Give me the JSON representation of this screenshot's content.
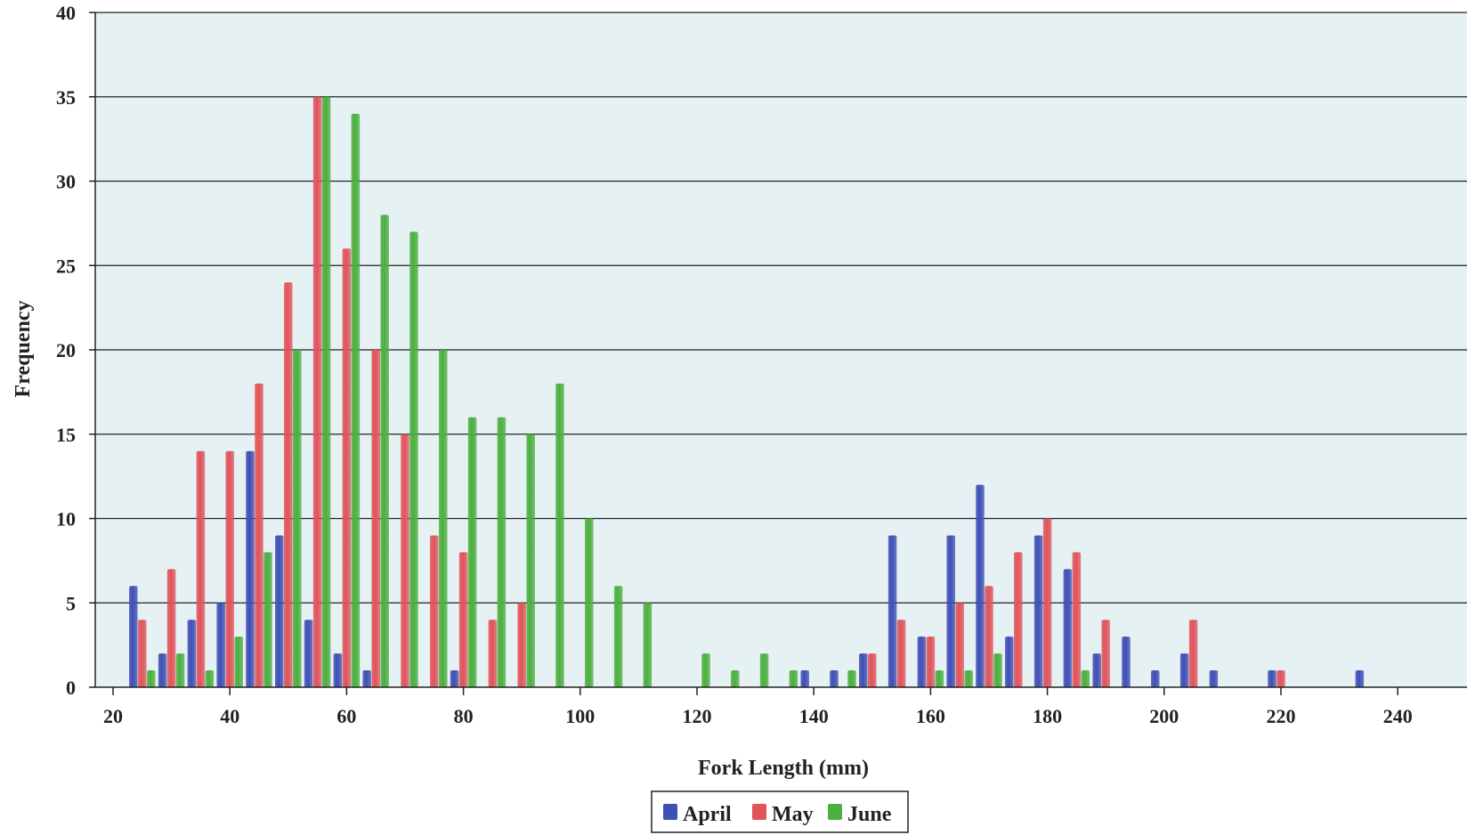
{
  "chart_data": {
    "type": "bar",
    "xlabel": "Fork Length (mm)",
    "ylabel": "Frequency",
    "ylim": [
      0,
      40
    ],
    "yticks": [
      0,
      5,
      10,
      15,
      20,
      25,
      30,
      35,
      40
    ],
    "xlim": [
      20,
      245
    ],
    "xticks": [
      20,
      40,
      60,
      80,
      100,
      120,
      140,
      160,
      180,
      200,
      220,
      240
    ],
    "bin_width_mm": 5,
    "grid": true,
    "legend_position": "bottom-center",
    "colors": {
      "background": "#e6f1f4",
      "April": "#3f4fb5",
      "May": "#e0545a",
      "June": "#4caf3f"
    },
    "x": [
      25,
      30,
      35,
      40,
      45,
      50,
      55,
      60,
      65,
      70,
      75,
      80,
      85,
      90,
      95,
      100,
      105,
      110,
      115,
      120,
      125,
      130,
      135,
      140,
      145,
      150,
      155,
      160,
      165,
      170,
      175,
      180,
      185,
      190,
      195,
      200,
      205,
      210,
      215,
      220,
      225,
      230,
      235
    ],
    "series": [
      {
        "name": "April",
        "values": [
          6,
          2,
          4,
          5,
          14,
          9,
          4,
          2,
          1,
          0,
          0,
          1,
          0,
          0,
          0,
          0,
          0,
          0,
          0,
          0,
          0,
          0,
          0,
          1,
          1,
          2,
          9,
          3,
          9,
          12,
          3,
          9,
          7,
          2,
          3,
          1,
          2,
          1,
          0,
          1,
          0,
          0,
          1
        ]
      },
      {
        "name": "May",
        "values": [
          4,
          7,
          14,
          14,
          18,
          24,
          35,
          26,
          20,
          15,
          9,
          8,
          4,
          5,
          0,
          0,
          0,
          0,
          0,
          0,
          0,
          0,
          0,
          0,
          0,
          2,
          4,
          3,
          5,
          6,
          8,
          10,
          8,
          4,
          0,
          0,
          4,
          0,
          0,
          1,
          0,
          0,
          0
        ]
      },
      {
        "name": "June",
        "values": [
          1,
          2,
          1,
          3,
          8,
          20,
          35,
          34,
          28,
          27,
          20,
          16,
          16,
          15,
          18,
          10,
          6,
          5,
          0,
          2,
          1,
          2,
          1,
          0,
          1,
          0,
          0,
          1,
          1,
          2,
          0,
          0,
          1,
          0,
          0,
          0,
          0,
          0,
          0,
          0,
          0,
          0,
          0
        ]
      }
    ]
  }
}
